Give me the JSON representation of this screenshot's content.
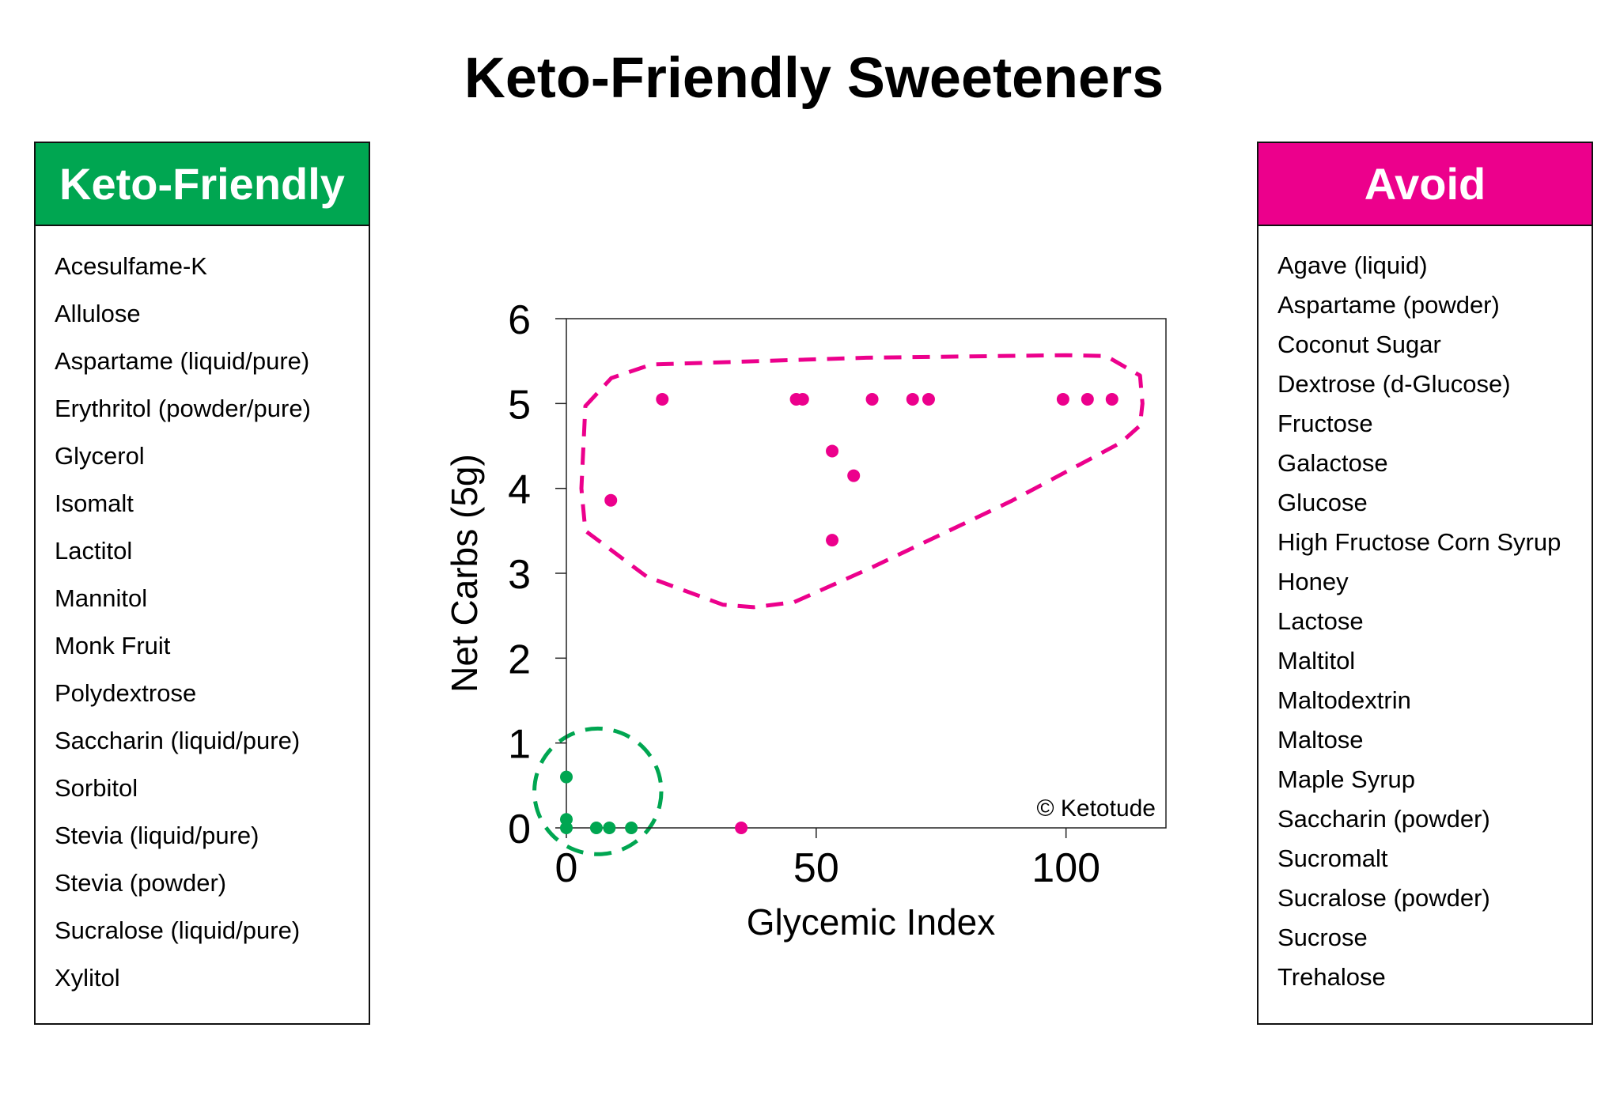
{
  "title": "Keto-Friendly Sweeteners",
  "colors": {
    "keto": "#00A651",
    "avoid": "#EC008C"
  },
  "keto_panel": {
    "header": "Keto-Friendly",
    "items": [
      "Acesulfame-K",
      "Allulose",
      "Aspartame (liquid/pure)",
      "Erythritol (powder/pure)",
      "Glycerol",
      "Isomalt",
      "Lactitol",
      "Mannitol",
      "Monk Fruit",
      "Polydextrose",
      "Saccharin (liquid/pure)",
      "Sorbitol",
      "Stevia (liquid/pure)",
      "Stevia (powder)",
      "Sucralose (liquid/pure)",
      "Xylitol"
    ]
  },
  "avoid_panel": {
    "header": "Avoid",
    "items": [
      "Agave (liquid)",
      "Aspartame (powder)",
      "Coconut Sugar",
      "Dextrose (d-Glucose)",
      "Fructose",
      "Galactose",
      "Glucose",
      "High Fructose Corn Syrup",
      "Honey",
      "Lactose",
      "Maltitol",
      "Maltodextrin",
      "Maltose",
      "Maple Syrup",
      "Saccharin (powder)",
      "Sucromalt",
      "Sucralose (powder)",
      "Sucrose",
      "Trehalose"
    ]
  },
  "chart_data": {
    "type": "scatter",
    "xlabel": "Glycemic Index",
    "ylabel": "Net Carbs (5g)",
    "xlim": [
      0,
      120
    ],
    "ylim": [
      0,
      6
    ],
    "xticks": [
      0,
      50,
      100
    ],
    "yticks": [
      0,
      1,
      2,
      3,
      4,
      5,
      6
    ],
    "grid": false,
    "annotation": "© Ketotude",
    "series": [
      {
        "color": "#00A651",
        "points": [
          [
            0,
            0.6
          ],
          [
            0,
            0.1
          ],
          [
            0,
            0
          ],
          [
            6,
            0
          ],
          [
            8.6,
            0
          ],
          [
            13,
            0
          ]
        ]
      },
      {
        "color": "#EC008C",
        "points": [
          [
            19.2,
            5.05
          ],
          [
            46,
            5.05
          ],
          [
            47.3,
            5.05
          ],
          [
            61.2,
            5.05
          ],
          [
            69.3,
            5.05
          ],
          [
            72.5,
            5.05
          ],
          [
            99.4,
            5.05
          ],
          [
            104.3,
            5.05
          ],
          [
            109.2,
            5.05
          ],
          [
            53.2,
            4.44
          ],
          [
            57.5,
            4.15
          ],
          [
            8.9,
            3.86
          ],
          [
            53.2,
            3.39
          ],
          [
            35,
            0
          ]
        ]
      }
    ]
  }
}
